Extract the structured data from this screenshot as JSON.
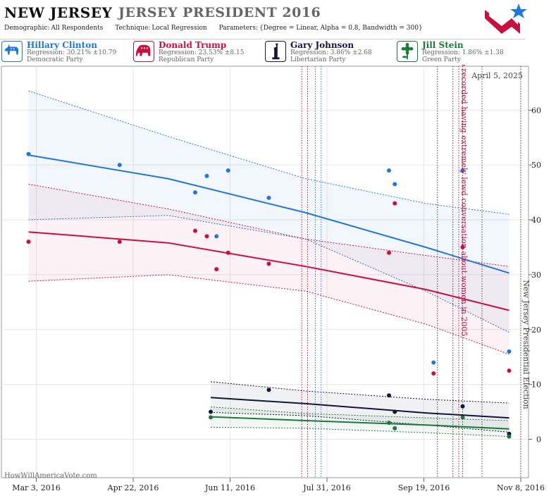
{
  "header": {
    "state": "NEW JERSEY",
    "race": "JERSEY PRESIDENT 2016",
    "meta": [
      {
        "k": "Demographic:",
        "v": "All Respondents"
      },
      {
        "k": "Technique:",
        "v": "Local Regression"
      },
      {
        "k": "Parameters:",
        "v": "{Degree = Linear, Alpha = 0.8, Bandwidth = 300}"
      }
    ]
  },
  "candidates": [
    {
      "name": "Hillary Clinton",
      "regression": "Regression: 30.21% ±10.79",
      "party": "Democratic Party",
      "color": "#1f77d9",
      "icon": "donkey-icon"
    },
    {
      "name": "Donald Trump",
      "regression": "Regression: 23.53% ±8.15",
      "party": "Republican Party",
      "color": "#c8103e",
      "icon": "elephant-icon"
    },
    {
      "name": "Gary Johnson",
      "regression": "Regression: 3.86% ±2.68",
      "party": "Libertarian Party",
      "color": "#14143c",
      "icon": "liberty-icon"
    },
    {
      "name": "Jill Stein",
      "regression": "Regression: 1.86% ±1.38",
      "party": "Green Party",
      "color": "#1a7a3a",
      "icon": "flower-icon"
    }
  ],
  "chart_data": {
    "type": "scatter",
    "date_stamp": "April 5, 2025",
    "watermark": "HowWillAmericaVote.com",
    "x_ticks": [
      "Mar 3, 2016",
      "Apr 22, 2016",
      "Jun 11, 2016",
      "Jul 31, 2016",
      "Sep 19, 2016",
      "Nov 8, 2016"
    ],
    "xlim": [
      "2016-02-14",
      "2016-11-12"
    ],
    "y_ticks": [
      0,
      10,
      20,
      30,
      40,
      50,
      60
    ],
    "ylim": [
      -7,
      68
    ],
    "grid": true,
    "annotations": [
      {
        "text": "Trump recorded having extremely lewd conversation about women in 2005",
        "date": "2016-10-07",
        "color": "#c8103e"
      },
      {
        "text": "New Jersey Presidential Election",
        "date": "2016-11-08",
        "color": "#444444"
      }
    ],
    "event_lines": [
      {
        "date": "2016-07-18",
        "color": "#c8103e"
      },
      {
        "date": "2016-07-21",
        "color": "#c8103e"
      },
      {
        "date": "2016-07-25",
        "color": "#1f77d9"
      },
      {
        "date": "2016-07-28",
        "color": "#1f77d9"
      },
      {
        "date": "2016-09-26",
        "color": "#444444"
      },
      {
        "date": "2016-10-04",
        "color": "#444444"
      },
      {
        "date": "2016-10-07",
        "color": "#c8103e"
      },
      {
        "date": "2016-10-09",
        "color": "#444444"
      },
      {
        "date": "2016-10-19",
        "color": "#444444"
      },
      {
        "date": "2016-11-08",
        "color": "#444444"
      }
    ],
    "series": [
      {
        "name": "Hillary Clinton",
        "color": "#1f77d9",
        "points": [
          {
            "x": "2016-02-28",
            "y": 52
          },
          {
            "x": "2016-04-15",
            "y": 50
          },
          {
            "x": "2016-05-24",
            "y": 45
          },
          {
            "x": "2016-05-30",
            "y": 48
          },
          {
            "x": "2016-06-04",
            "y": 37
          },
          {
            "x": "2016-06-10",
            "y": 49
          },
          {
            "x": "2016-07-01",
            "y": 44
          },
          {
            "x": "2016-09-01",
            "y": 49
          },
          {
            "x": "2016-09-04",
            "y": 46.5
          },
          {
            "x": "2016-09-24",
            "y": 14
          },
          {
            "x": "2016-10-09",
            "y": 49
          },
          {
            "x": "2016-11-02",
            "y": 16
          }
        ],
        "trend": [
          {
            "x": "2016-02-28",
            "y": 51.8
          },
          {
            "x": "2016-05-10",
            "y": 47.5
          },
          {
            "x": "2016-07-20",
            "y": 41.3
          },
          {
            "x": "2016-09-20",
            "y": 35.0
          },
          {
            "x": "2016-11-02",
            "y": 30.3
          }
        ],
        "upper": [
          {
            "x": "2016-02-28",
            "y": 63.5
          },
          {
            "x": "2016-05-10",
            "y": 55.2
          },
          {
            "x": "2016-07-20",
            "y": 47.5
          },
          {
            "x": "2016-09-20",
            "y": 43.0
          },
          {
            "x": "2016-11-02",
            "y": 41.0
          }
        ],
        "lower": [
          {
            "x": "2016-02-28",
            "y": 40.0
          },
          {
            "x": "2016-05-10",
            "y": 40.8
          },
          {
            "x": "2016-07-20",
            "y": 36.5
          },
          {
            "x": "2016-09-20",
            "y": 27.0
          },
          {
            "x": "2016-11-02",
            "y": 19.5
          }
        ]
      },
      {
        "name": "Donald Trump",
        "color": "#c8103e",
        "points": [
          {
            "x": "2016-02-28",
            "y": 36
          },
          {
            "x": "2016-04-15",
            "y": 36
          },
          {
            "x": "2016-05-24",
            "y": 38
          },
          {
            "x": "2016-05-30",
            "y": 37
          },
          {
            "x": "2016-06-04",
            "y": 31
          },
          {
            "x": "2016-06-10",
            "y": 34
          },
          {
            "x": "2016-07-01",
            "y": 32
          },
          {
            "x": "2016-09-01",
            "y": 34
          },
          {
            "x": "2016-09-04",
            "y": 43
          },
          {
            "x": "2016-09-24",
            "y": 12
          },
          {
            "x": "2016-10-09",
            "y": 35
          },
          {
            "x": "2016-11-02",
            "y": 12.5
          }
        ],
        "trend": [
          {
            "x": "2016-02-28",
            "y": 37.8
          },
          {
            "x": "2016-05-10",
            "y": 35.8
          },
          {
            "x": "2016-07-20",
            "y": 31.5
          },
          {
            "x": "2016-09-20",
            "y": 27.3
          },
          {
            "x": "2016-11-02",
            "y": 23.5
          }
        ],
        "upper": [
          {
            "x": "2016-02-28",
            "y": 46.5
          },
          {
            "x": "2016-05-10",
            "y": 42.0
          },
          {
            "x": "2016-07-20",
            "y": 36.5
          },
          {
            "x": "2016-09-20",
            "y": 33.5
          },
          {
            "x": "2016-11-02",
            "y": 31.5
          }
        ],
        "lower": [
          {
            "x": "2016-02-28",
            "y": 28.8
          },
          {
            "x": "2016-05-10",
            "y": 30.0
          },
          {
            "x": "2016-07-20",
            "y": 27.0
          },
          {
            "x": "2016-09-20",
            "y": 21.0
          },
          {
            "x": "2016-11-02",
            "y": 15.5
          }
        ]
      },
      {
        "name": "Gary Johnson",
        "color": "#14143c",
        "points": [
          {
            "x": "2016-06-01",
            "y": 5
          },
          {
            "x": "2016-07-01",
            "y": 9
          },
          {
            "x": "2016-09-01",
            "y": 8
          },
          {
            "x": "2016-09-04",
            "y": 5
          },
          {
            "x": "2016-10-09",
            "y": 6
          },
          {
            "x": "2016-11-02",
            "y": 1
          }
        ],
        "trend": [
          {
            "x": "2016-06-01",
            "y": 7.6
          },
          {
            "x": "2016-07-20",
            "y": 6.5
          },
          {
            "x": "2016-09-20",
            "y": 4.8
          },
          {
            "x": "2016-11-02",
            "y": 3.9
          }
        ],
        "upper": [
          {
            "x": "2016-06-01",
            "y": 10.5
          },
          {
            "x": "2016-07-20",
            "y": 8.8
          },
          {
            "x": "2016-09-20",
            "y": 7.3
          },
          {
            "x": "2016-11-02",
            "y": 6.6
          }
        ],
        "lower": [
          {
            "x": "2016-06-01",
            "y": 4.9
          },
          {
            "x": "2016-07-20",
            "y": 4.3
          },
          {
            "x": "2016-09-20",
            "y": 2.6
          },
          {
            "x": "2016-11-02",
            "y": 1.3
          }
        ]
      },
      {
        "name": "Jill Stein",
        "color": "#1a7a3a",
        "points": [
          {
            "x": "2016-06-01",
            "y": 4
          },
          {
            "x": "2016-09-01",
            "y": 3
          },
          {
            "x": "2016-09-04",
            "y": 2
          },
          {
            "x": "2016-10-09",
            "y": 4
          },
          {
            "x": "2016-11-02",
            "y": 0.5
          }
        ],
        "trend": [
          {
            "x": "2016-06-01",
            "y": 4.1
          },
          {
            "x": "2016-07-20",
            "y": 3.4
          },
          {
            "x": "2016-09-20",
            "y": 2.6
          },
          {
            "x": "2016-11-02",
            "y": 1.9
          }
        ],
        "upper": [
          {
            "x": "2016-06-01",
            "y": 5.9
          },
          {
            "x": "2016-07-20",
            "y": 4.7
          },
          {
            "x": "2016-09-20",
            "y": 3.9
          },
          {
            "x": "2016-11-02",
            "y": 3.4
          }
        ],
        "lower": [
          {
            "x": "2016-06-01",
            "y": 2.2
          },
          {
            "x": "2016-07-20",
            "y": 2.0
          },
          {
            "x": "2016-09-20",
            "y": 1.2
          },
          {
            "x": "2016-11-02",
            "y": 0.5
          }
        ]
      }
    ]
  }
}
